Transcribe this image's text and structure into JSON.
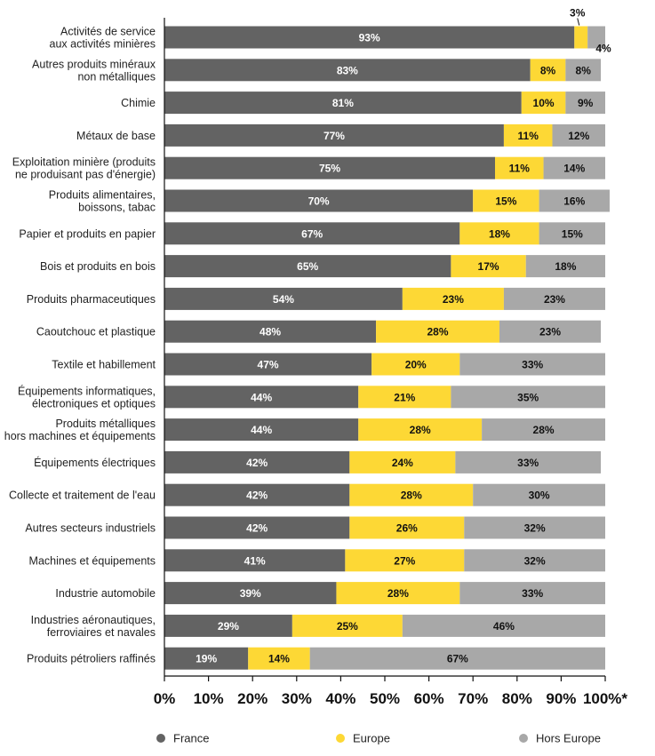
{
  "chart_data": {
    "type": "bar",
    "orientation": "horizontal",
    "stacked": true,
    "categories": [
      [
        "Activités de service",
        "aux activités minières"
      ],
      [
        "Autres produits minéraux",
        "non métalliques"
      ],
      [
        "Chimie"
      ],
      [
        "Métaux de base"
      ],
      [
        "Exploitation minière (produits",
        "ne produisant pas d'énergie)"
      ],
      [
        "Produits alimentaires,",
        "boissons, tabac"
      ],
      [
        "Papier et produits en papier"
      ],
      [
        "Bois et produits en bois"
      ],
      [
        "Produits pharmaceutiques"
      ],
      [
        "Caoutchouc et plastique"
      ],
      [
        "Textile et habillement"
      ],
      [
        "Équipements informatiques,",
        "électroniques et optiques"
      ],
      [
        "Produits métalliques",
        "hors machines et équipements"
      ],
      [
        "Équipements électriques"
      ],
      [
        "Collecte et traitement de l'eau"
      ],
      [
        "Autres secteurs industriels"
      ],
      [
        "Machines et équipements"
      ],
      [
        "Industrie automobile"
      ],
      [
        "Industries aéronautiques,",
        "ferroviaires et navales"
      ],
      [
        "Produits pétroliers raffinés"
      ]
    ],
    "series": [
      {
        "name": "France",
        "color": "#636363",
        "label_color": "#ffffff",
        "values": [
          93,
          83,
          81,
          77,
          75,
          70,
          67,
          65,
          54,
          48,
          47,
          44,
          44,
          42,
          42,
          42,
          41,
          39,
          29,
          19
        ]
      },
      {
        "name": "Europe",
        "color": "#fdd835",
        "label_color": "#111111",
        "values": [
          3,
          8,
          10,
          11,
          11,
          15,
          18,
          17,
          23,
          28,
          20,
          21,
          28,
          24,
          28,
          26,
          27,
          28,
          25,
          14
        ]
      },
      {
        "name": "Hors Europe",
        "color": "#a8a8a8",
        "label_color": "#111111",
        "values": [
          4,
          8,
          9,
          12,
          14,
          16,
          15,
          18,
          23,
          23,
          33,
          35,
          28,
          33,
          30,
          32,
          32,
          33,
          46,
          67
        ]
      }
    ],
    "value_suffix": "%",
    "x_ticks": [
      "0%",
      "10%",
      "20%",
      "30%",
      "40%",
      "50%",
      "60%",
      "70%",
      "80%",
      "90%",
      "100%*"
    ],
    "xlim": [
      0,
      100
    ],
    "legend": {
      "position": "bottom"
    }
  }
}
